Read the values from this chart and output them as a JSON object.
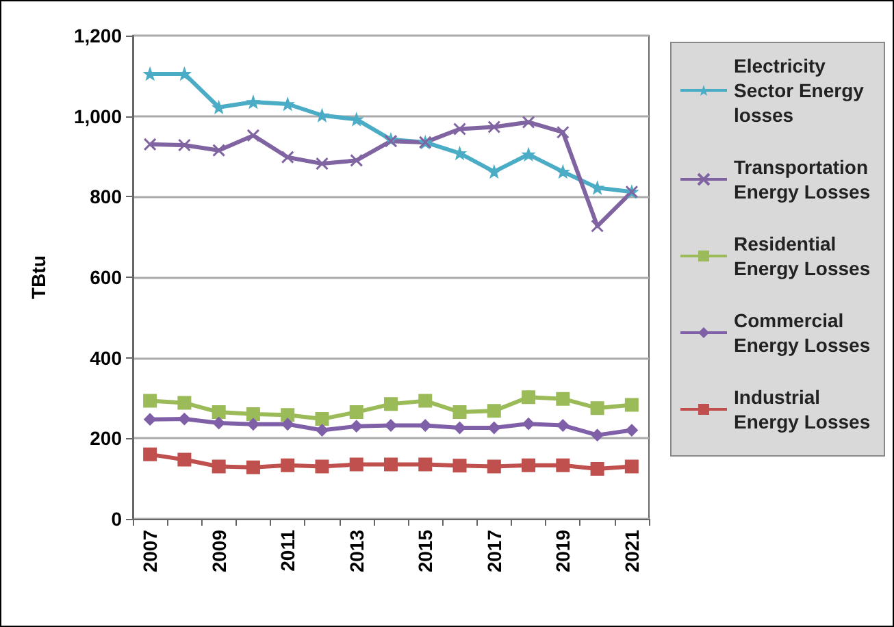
{
  "chart_data": {
    "type": "line",
    "ylabel": "TBtu",
    "categories": [
      "2007",
      null,
      "2009",
      null,
      "2011",
      null,
      "2013",
      null,
      "2015",
      null,
      "2017",
      null,
      "2019",
      null,
      "2021"
    ],
    "series": [
      {
        "name": "Electricity Sector Energy losses",
        "color": "#4bacc6",
        "marker": "star",
        "values": [
          1105,
          1105,
          1022,
          1035,
          1030,
          1002,
          992,
          942,
          935,
          908,
          862,
          905,
          862,
          822,
          812
        ]
      },
      {
        "name": "Transportation Energy Losses",
        "color": "#8064a2",
        "marker": "cross",
        "values": [
          930,
          928,
          915,
          952,
          898,
          882,
          890,
          938,
          935,
          968,
          973,
          985,
          960,
          727,
          812
        ]
      },
      {
        "name": "Residential Energy Losses",
        "color": "#9bbb59",
        "marker": "square",
        "values": [
          293,
          288,
          265,
          260,
          258,
          248,
          265,
          285,
          293,
          265,
          268,
          302,
          298,
          275,
          283
        ]
      },
      {
        "name": "Commercial Energy Losses",
        "color": "#7f60a8",
        "marker": "diamond",
        "values": [
          247,
          248,
          238,
          235,
          235,
          220,
          230,
          232,
          232,
          226,
          226,
          236,
          232,
          208,
          220
        ]
      },
      {
        "name": "Industrial Energy Losses",
        "color": "#c0504d",
        "marker": "square",
        "values": [
          160,
          147,
          130,
          128,
          133,
          130,
          135,
          135,
          135,
          132,
          130,
          133,
          133,
          124,
          130
        ]
      }
    ],
    "ylim": [
      0,
      1200
    ],
    "yticks": [
      0,
      200,
      400,
      600,
      800,
      {
        "value": 1000,
        "label": "1,000"
      },
      {
        "value": 1200,
        "label": "1,200"
      }
    ],
    "grid": "y",
    "legend": "right"
  }
}
